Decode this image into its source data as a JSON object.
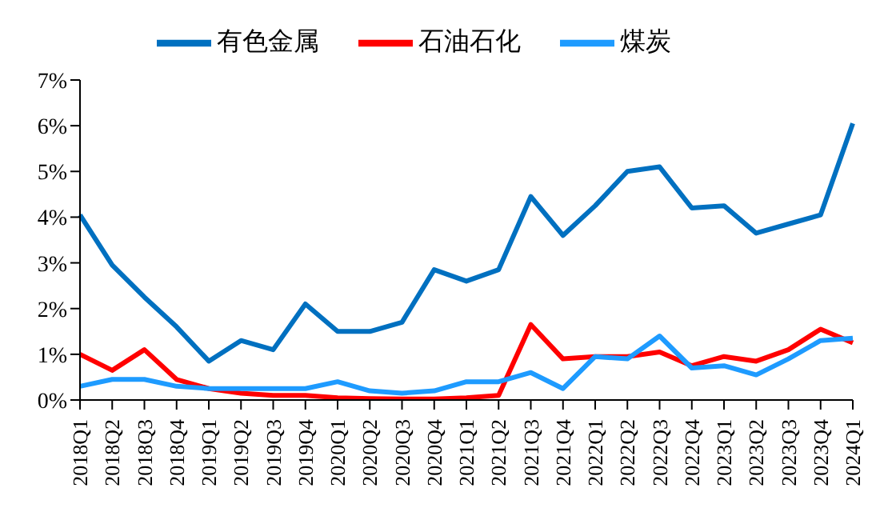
{
  "chart_data": {
    "type": "line",
    "categories": [
      "2018Q1",
      "2018Q2",
      "2018Q3",
      "2018Q4",
      "2019Q1",
      "2019Q2",
      "2019Q3",
      "2019Q4",
      "2020Q1",
      "2020Q2",
      "2020Q3",
      "2020Q4",
      "2021Q1",
      "2021Q2",
      "2021Q3",
      "2021Q4",
      "2022Q1",
      "2022Q2",
      "2022Q3",
      "2022Q4",
      "2023Q1",
      "2023Q2",
      "2023Q3",
      "2023Q4",
      "2024Q1"
    ],
    "series": [
      {
        "name": "有色金属",
        "color": "#0070c0",
        "values": [
          4.05,
          2.95,
          2.25,
          1.6,
          0.85,
          1.3,
          1.1,
          2.1,
          1.5,
          1.5,
          1.7,
          2.85,
          2.6,
          2.85,
          4.45,
          3.6,
          4.25,
          5.0,
          5.1,
          4.2,
          4.25,
          3.65,
          3.85,
          4.05,
          6.05
        ]
      },
      {
        "name": "石油石化",
        "color": "#ff0000",
        "values": [
          1.0,
          0.65,
          1.1,
          0.45,
          0.25,
          0.15,
          0.1,
          0.1,
          0.05,
          0.03,
          0.02,
          0.02,
          0.05,
          0.1,
          1.65,
          0.9,
          0.95,
          0.95,
          1.05,
          0.75,
          0.95,
          0.85,
          1.1,
          1.55,
          1.25
        ]
      },
      {
        "name": "煤炭",
        "color": "#1e9bff",
        "values": [
          0.3,
          0.45,
          0.45,
          0.3,
          0.25,
          0.25,
          0.25,
          0.25,
          0.4,
          0.2,
          0.15,
          0.2,
          0.4,
          0.4,
          0.6,
          0.25,
          0.95,
          0.9,
          1.4,
          0.7,
          0.75,
          0.55,
          0.9,
          1.3,
          1.35
        ]
      }
    ],
    "ylim": [
      0,
      7
    ],
    "yticks": [
      {
        "value": 0,
        "label": "0%"
      },
      {
        "value": 1,
        "label": "1%"
      },
      {
        "value": 2,
        "label": "2%"
      },
      {
        "value": 3,
        "label": "3%"
      },
      {
        "value": 4,
        "label": "4%"
      },
      {
        "value": 5,
        "label": "5%"
      },
      {
        "value": 6,
        "label": "6%"
      },
      {
        "value": 7,
        "label": "7%"
      }
    ],
    "grid": false,
    "legend": "top",
    "marker": "none",
    "line_style": "solid"
  }
}
